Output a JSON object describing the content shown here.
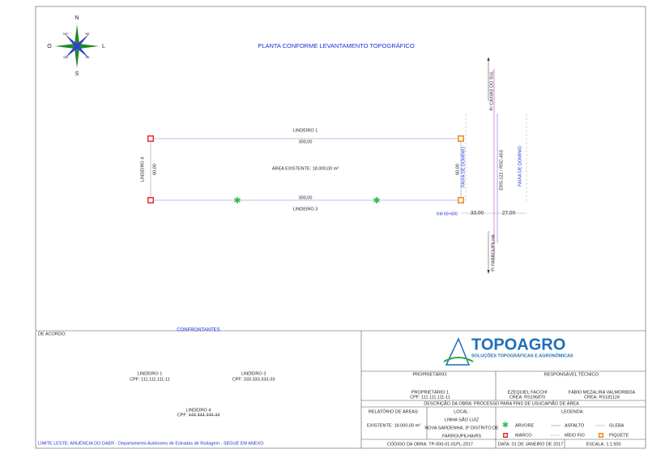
{
  "compass": {
    "n": "N",
    "s": "S",
    "o": "O",
    "l": "L",
    "no": "NO",
    "ne": "NE",
    "so": "SO",
    "se": "SE"
  },
  "title": "PLANTA CONFORME LEVANTAMENTO TOPOGRÁFICO",
  "plan": {
    "north_label": "LINDEIRO 1",
    "north_length": "300,00",
    "area": "ÁREA EXISTENTE: 18.000,00 m²",
    "south_length": "300,00",
    "south_label": "LINDEIRO 3",
    "west_label": "LINDEIRO 4",
    "west_length": "60,00",
    "east_length": "60,00",
    "right_of_way_1": "FAIXA DE DOMÍNIO",
    "road_north": "P/ CAXIAS DO SUL",
    "road": "ERS-122 / RSC-453",
    "right_of_way_2": "FAIXA DE DOMÍNIO",
    "km": "KM 60+500",
    "width_west": "33,00",
    "width_east": "27,00",
    "road_south": "P/ FARROUPILHA"
  },
  "confrontantes": {
    "agreement": "DE ACORDO:",
    "title": "CONFRONTANTES",
    "neighbors": [
      {
        "name": "LINDEIRO 1",
        "cpf": "CPF: 111.111.111-11"
      },
      {
        "name": "LINDEIRO 3",
        "cpf": "CPF: 333.333.333-33"
      },
      {
        "name": "LINDEIRO 4",
        "cpf": "CPF: 444.444.444-44"
      }
    ],
    "east_limit": "LIMITE LESTE: ANUÊNCIA DO DAER - Departamento Autônomo de Estradas de Rodagem - SEGUE EM  ANEXO"
  },
  "title_block": {
    "logo": "TOPOAGRO",
    "logo_subtitle": "SOLUÇÕES TOPOGRÁFICAS E AGRONÔMICAS",
    "owner_label": "PROPRIETÁRIO:",
    "technician_label": "RESPONSÁVEL TÉCNICO:",
    "owner": "PROPRIETÁRIO 1",
    "owner_cpf": "CPF: 111.111.111-11",
    "technicians": [
      {
        "name": "EZEQUIEL FACCHI",
        "crea": "CREA: RS196870"
      },
      {
        "name": "FÁBIO MEZALIRA VALMORBIDA",
        "crea": "CREA: RS181124"
      }
    ],
    "description": "DESCRIÇÃO DA OBRA: PROCESSO PARA FINS DE USUCAPIÃO DE ÁREA",
    "areas_label": "RELATÓRIO DE ÁREAS:",
    "area_existing": "EXISTENTE: 18.000,00 m²",
    "location_label": "LOCAL:",
    "location": [
      "LINHA SÃO LUIZ",
      "NOVA SARDENHA, 3º DISTRITO DE",
      "FARROUPILHA/RS"
    ],
    "legend_label": "LEGENDA:",
    "legend": {
      "tree": "ÁRVORE",
      "marker": "MARCO",
      "asphalt": "ASFALTO",
      "curb": "MEIO FIO",
      "parcel": "GLEBA",
      "stake": "PIQUETE"
    },
    "code": "CÓDIGO DA OBRA: TP-000-01-01PL-2017",
    "date": "DATA: 01 DE JANEIRO DE 2017",
    "scale": "ESCALA: 1:1.500"
  }
}
